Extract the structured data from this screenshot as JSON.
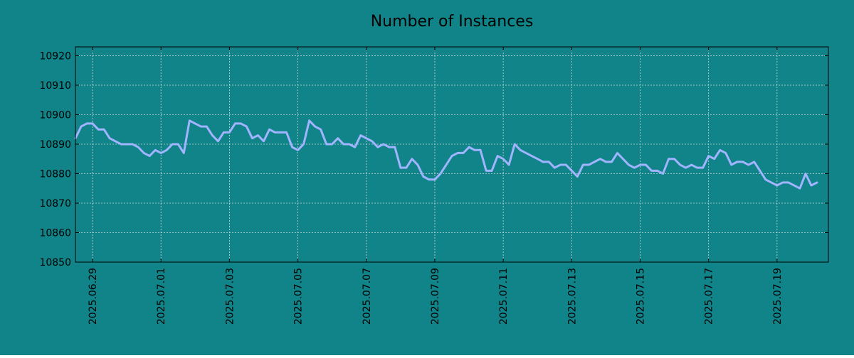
{
  "colors": {
    "background": "#108488",
    "line": "#a0b4ff",
    "grid": "#c9d6d6",
    "axis": "#000000",
    "text": "#000000"
  },
  "chart_data": {
    "type": "line",
    "title": "Number of Instances",
    "xlabel": "",
    "ylabel": "",
    "grid": true,
    "x_start": "2025-06-28 12:00",
    "x_step_hours": 4,
    "xlim": [
      "2025-06-28 12:00",
      "2025-07-20 12:00"
    ],
    "ylim": [
      10850,
      10923
    ],
    "y_ticks": [
      10850,
      10860,
      10870,
      10880,
      10890,
      10900,
      10910,
      10920
    ],
    "x_ticks": [
      "2025.06.29",
      "2025.07.01",
      "2025.07.03",
      "2025.07.05",
      "2025.07.07",
      "2025.07.09",
      "2025.07.11",
      "2025.07.13",
      "2025.07.15",
      "2025.07.17",
      "2025.07.19"
    ],
    "x_tick_dates": [
      "2025-06-29",
      "2025-07-01",
      "2025-07-03",
      "2025-07-05",
      "2025-07-07",
      "2025-07-09",
      "2025-07-11",
      "2025-07-13",
      "2025-07-15",
      "2025-07-17",
      "2025-07-19"
    ],
    "series": [
      {
        "values": [
          10892,
          10896,
          10897,
          10897,
          10895,
          10895,
          10892,
          10891,
          10890,
          10890,
          10890,
          10889,
          10887,
          10886,
          10888,
          10887,
          10888,
          10890,
          10890,
          10887,
          10898,
          10897,
          10896,
          10896,
          10893,
          10891,
          10894,
          10894,
          10897,
          10897,
          10896,
          10892,
          10893,
          10891,
          10895,
          10894,
          10894,
          10894,
          10889,
          10888,
          10890,
          10898,
          10896,
          10895,
          10890,
          10890,
          10892,
          10890,
          10890,
          10889,
          10893,
          10892,
          10891,
          10889,
          10890,
          10889,
          10889,
          10882,
          10882,
          10885,
          10883,
          10879,
          10878,
          10878,
          10880,
          10883,
          10886,
          10887,
          10887,
          10889,
          10888,
          10888,
          10881,
          10881,
          10886,
          10885,
          10883,
          10890,
          10888,
          10887,
          10886,
          10885,
          10884,
          10884,
          10882,
          10883,
          10883,
          10881,
          10879,
          10883,
          10883,
          10884,
          10885,
          10884,
          10884,
          10887,
          10885,
          10883,
          10882,
          10883,
          10883,
          10881,
          10881,
          10880,
          10885,
          10885,
          10883,
          10882,
          10883,
          10882,
          10882,
          10886,
          10885,
          10888,
          10887,
          10883,
          10884,
          10884,
          10883,
          10884,
          10881,
          10878,
          10877,
          10876,
          10877,
          10877,
          10876,
          10875,
          10880,
          10876,
          10877
        ]
      }
    ]
  }
}
